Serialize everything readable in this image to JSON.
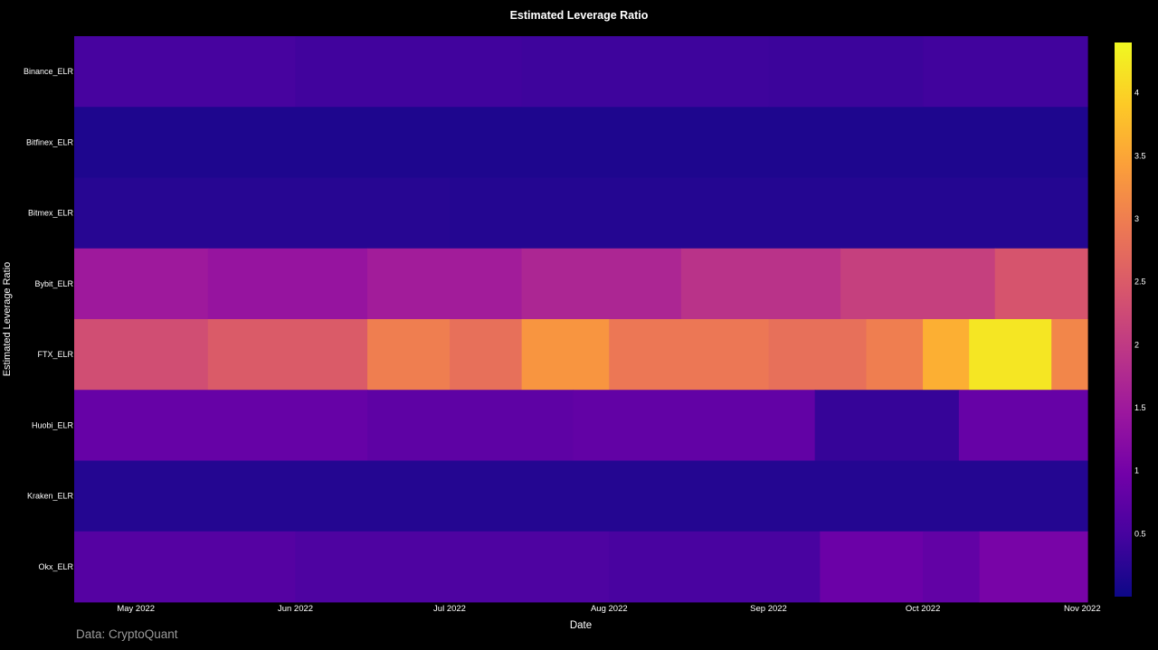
{
  "chart_data": {
    "type": "heatmap",
    "title": "Estimated Leverage Ratio",
    "xlabel": "Date",
    "ylabel": "Estimated Leverage Ratio",
    "source": "Data: CryptoQuant",
    "date_range": [
      "2022-04-19",
      "2022-11-02"
    ],
    "x_ticks": [
      {
        "date": "2022-05-01",
        "label": "May 2022"
      },
      {
        "date": "2022-06-01",
        "label": "Jun 2022"
      },
      {
        "date": "2022-07-01",
        "label": "Jul 2022"
      },
      {
        "date": "2022-08-01",
        "label": "Aug 2022"
      },
      {
        "date": "2022-09-01",
        "label": "Sep 2022"
      },
      {
        "date": "2022-10-01",
        "label": "Oct 2022"
      },
      {
        "date": "2022-11-01",
        "label": "Nov 2022"
      }
    ],
    "rows": [
      {
        "name": "Binance_ELR",
        "segments": [
          {
            "from": "2022-04-19",
            "to": "2022-06-01",
            "value": 0.5
          },
          {
            "from": "2022-06-01",
            "to": "2022-07-15",
            "value": 0.45
          },
          {
            "from": "2022-07-15",
            "to": "2022-09-01",
            "value": 0.42
          },
          {
            "from": "2022-09-01",
            "to": "2022-10-01",
            "value": 0.4
          },
          {
            "from": "2022-10-01",
            "to": "2022-11-02",
            "value": 0.45
          }
        ]
      },
      {
        "name": "Bitfinex_ELR",
        "segments": [
          {
            "from": "2022-04-19",
            "to": "2022-11-02",
            "value": 0.15
          }
        ]
      },
      {
        "name": "Bitmex_ELR",
        "segments": [
          {
            "from": "2022-04-19",
            "to": "2022-07-01",
            "value": 0.22
          },
          {
            "from": "2022-07-01",
            "to": "2022-11-02",
            "value": 0.2
          }
        ]
      },
      {
        "name": "Bybit_ELR",
        "segments": [
          {
            "from": "2022-04-19",
            "to": "2022-05-15",
            "value": 1.5
          },
          {
            "from": "2022-05-15",
            "to": "2022-06-15",
            "value": 1.4
          },
          {
            "from": "2022-06-15",
            "to": "2022-07-15",
            "value": 1.55
          },
          {
            "from": "2022-07-15",
            "to": "2022-08-15",
            "value": 1.7
          },
          {
            "from": "2022-08-15",
            "to": "2022-09-15",
            "value": 1.9
          },
          {
            "from": "2022-09-15",
            "to": "2022-10-15",
            "value": 2.1
          },
          {
            "from": "2022-10-15",
            "to": "2022-11-02",
            "value": 2.4
          }
        ]
      },
      {
        "name": "FTX_ELR",
        "segments": [
          {
            "from": "2022-04-19",
            "to": "2022-05-15",
            "value": 2.3
          },
          {
            "from": "2022-05-15",
            "to": "2022-06-15",
            "value": 2.5
          },
          {
            "from": "2022-06-15",
            "to": "2022-07-01",
            "value": 3.0
          },
          {
            "from": "2022-07-01",
            "to": "2022-07-15",
            "value": 2.8
          },
          {
            "from": "2022-07-15",
            "to": "2022-08-01",
            "value": 3.3
          },
          {
            "from": "2022-08-01",
            "to": "2022-09-01",
            "value": 2.9
          },
          {
            "from": "2022-09-01",
            "to": "2022-09-20",
            "value": 2.8
          },
          {
            "from": "2022-09-20",
            "to": "2022-10-01",
            "value": 3.0
          },
          {
            "from": "2022-10-01",
            "to": "2022-10-10",
            "value": 3.6
          },
          {
            "from": "2022-10-10",
            "to": "2022-10-26",
            "value": 4.2
          },
          {
            "from": "2022-10-26",
            "to": "2022-11-02",
            "value": 3.1
          }
        ]
      },
      {
        "name": "Huobi_ELR",
        "segments": [
          {
            "from": "2022-04-19",
            "to": "2022-06-15",
            "value": 0.85
          },
          {
            "from": "2022-06-15",
            "to": "2022-07-25",
            "value": 0.75
          },
          {
            "from": "2022-07-25",
            "to": "2022-09-10",
            "value": 0.8
          },
          {
            "from": "2022-09-10",
            "to": "2022-10-08",
            "value": 0.35
          },
          {
            "from": "2022-10-08",
            "to": "2022-11-02",
            "value": 0.85
          }
        ]
      },
      {
        "name": "Kraken_ELR",
        "segments": [
          {
            "from": "2022-04-19",
            "to": "2022-11-02",
            "value": 0.2
          }
        ]
      },
      {
        "name": "Okx_ELR",
        "segments": [
          {
            "from": "2022-04-19",
            "to": "2022-06-01",
            "value": 0.65
          },
          {
            "from": "2022-06-01",
            "to": "2022-08-01",
            "value": 0.58
          },
          {
            "from": "2022-08-01",
            "to": "2022-09-11",
            "value": 0.52
          },
          {
            "from": "2022-09-11",
            "to": "2022-10-01",
            "value": 0.9
          },
          {
            "from": "2022-10-01",
            "to": "2022-10-12",
            "value": 0.8
          },
          {
            "from": "2022-10-12",
            "to": "2022-11-02",
            "value": 1.05
          }
        ]
      }
    ],
    "colorscale": "Plasma",
    "zrange": [
      0,
      4.4
    ],
    "colorbar_ticks": [
      0.5,
      1,
      1.5,
      2,
      2.5,
      3,
      3.5,
      4
    ],
    "colorbar_tick_labels": [
      "0.5",
      "1",
      "1.5",
      "2",
      "2.5",
      "3",
      "3.5",
      "4"
    ],
    "plasma_stops": [
      "#0d0887",
      "#46039f",
      "#7201a8",
      "#9c179e",
      "#bd3786",
      "#d8576b",
      "#ed7953",
      "#fb9f3a",
      "#fdca26",
      "#f0f921"
    ]
  }
}
